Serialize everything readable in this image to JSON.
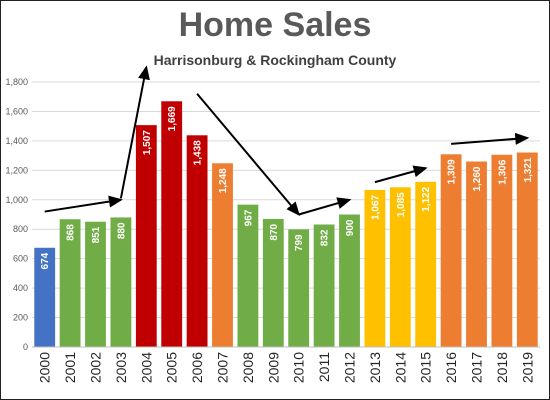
{
  "title": "Home Sales",
  "subtitle": "Harrisonburg & Rockingham County",
  "chart_data": {
    "type": "bar",
    "title": "Home Sales",
    "subtitle": "Harrisonburg & Rockingham County",
    "categories": [
      "2000",
      "2001",
      "2002",
      "2003",
      "2004",
      "2005",
      "2006",
      "2007",
      "2008",
      "2009",
      "2010",
      "2011",
      "2012",
      "2013",
      "2014",
      "2015",
      "2016",
      "2017",
      "2018",
      "2019"
    ],
    "values": [
      674,
      868,
      851,
      880,
      1507,
      1669,
      1438,
      1248,
      967,
      870,
      799,
      832,
      900,
      1067,
      1085,
      1122,
      1309,
      1260,
      1306,
      1321
    ],
    "data_labels": [
      "674",
      "868",
      "851",
      "880",
      "1,507",
      "1,669",
      "1,438",
      "1,248",
      "967",
      "870",
      "799",
      "832",
      "900",
      "1,067",
      "1,085",
      "1,122",
      "1,309",
      "1,260",
      "1,306",
      "1,321"
    ],
    "bar_colors": [
      "#4472C4",
      "#70AD47",
      "#70AD47",
      "#70AD47",
      "#C00000",
      "#C00000",
      "#C00000",
      "#ED7D31",
      "#70AD47",
      "#70AD47",
      "#70AD47",
      "#70AD47",
      "#70AD47",
      "#FFC000",
      "#FFC000",
      "#FFC000",
      "#ED7D31",
      "#ED7D31",
      "#ED7D31",
      "#ED7D31"
    ],
    "ylim": [
      0,
      1800
    ],
    "yticks": [
      0,
      200,
      400,
      600,
      800,
      1000,
      1200,
      1400,
      1600,
      1800
    ],
    "ytick_labels": [
      "0",
      "200",
      "400",
      "600",
      "800",
      "1,000",
      "1,200",
      "1,400",
      "1,600",
      "1,800"
    ],
    "grid": true,
    "xlabel": "",
    "ylabel": "",
    "annotations": [
      {
        "type": "arrow",
        "from": {
          "x": "2000",
          "y": 920
        },
        "to": {
          "x": "2003",
          "y": 1000
        }
      },
      {
        "type": "arrow",
        "from": {
          "x": "2003",
          "y": 1010
        },
        "to": {
          "x": "2004",
          "y": 1900
        }
      },
      {
        "type": "arrow",
        "from": {
          "x": "2006",
          "y": 1720
        },
        "to": {
          "x": "2010",
          "y": 900
        }
      },
      {
        "type": "arrow",
        "from": {
          "x": "2010",
          "y": 900
        },
        "to": {
          "x": "2012",
          "y": 1000
        }
      },
      {
        "type": "arrow",
        "from": {
          "x": "2013",
          "y": 1120
        },
        "to": {
          "x": "2015",
          "y": 1215
        }
      },
      {
        "type": "arrow",
        "from": {
          "x": "2016",
          "y": 1380
        },
        "to": {
          "x": "2019",
          "y": 1420
        }
      }
    ]
  }
}
